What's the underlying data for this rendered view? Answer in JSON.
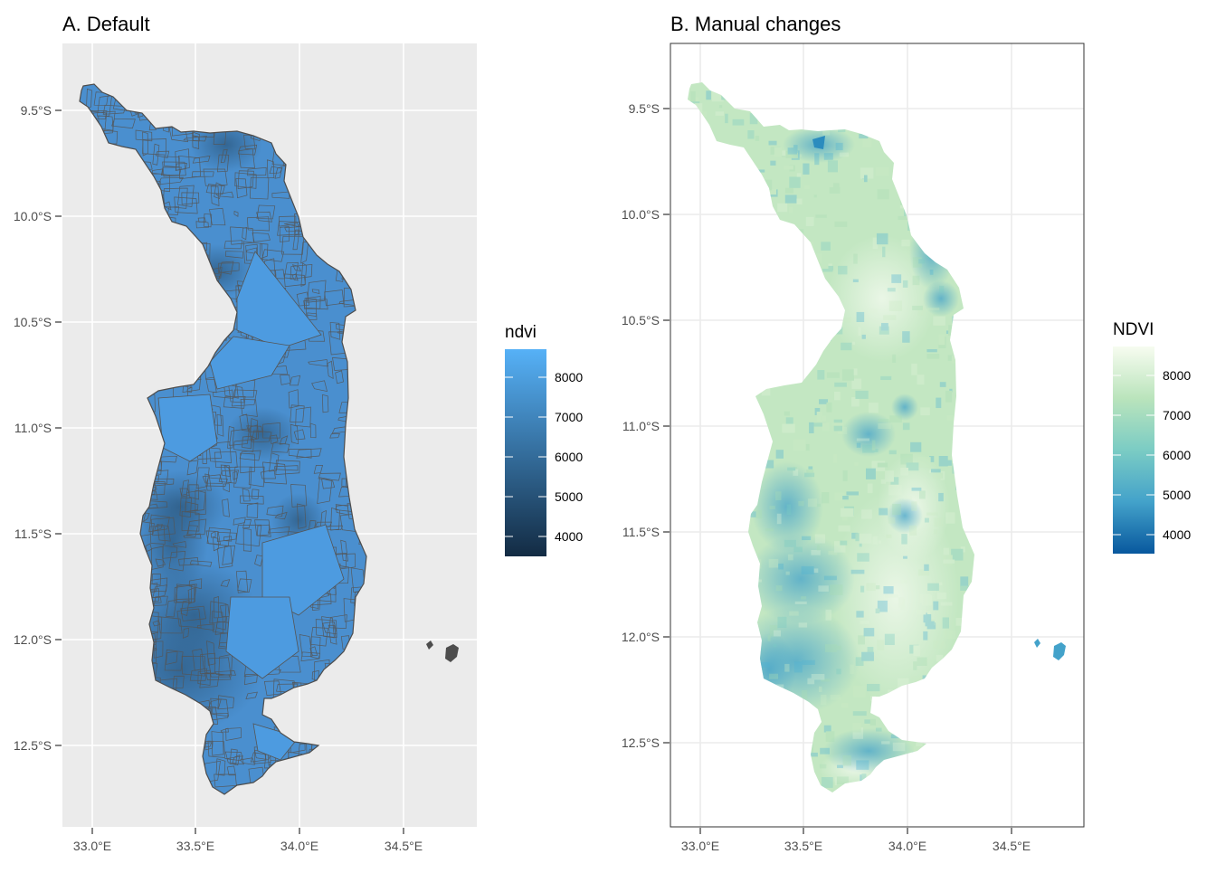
{
  "panel_a": {
    "title": "A. Default",
    "x_ticks": [
      "33.0°E",
      "33.5°E",
      "34.0°E",
      "34.5°E"
    ],
    "y_ticks": [
      "9.5°S",
      "10.0°S",
      "10.5°S",
      "11.0°S",
      "11.5°S",
      "12.0°S",
      "12.5°S"
    ],
    "legend_title": "ndvi",
    "legend_ticks": [
      "8000",
      "7000",
      "6000",
      "5000",
      "4000"
    ],
    "colors": {
      "panel_bg": "#ebebeb",
      "grid": "#ffffff",
      "fill": "#4a90d0",
      "border": "#4d4d4d",
      "scale_low": "#132b43",
      "scale_high": "#56b1f7"
    }
  },
  "panel_b": {
    "title": "B. Manual changes",
    "x_ticks": [
      "33.0°E",
      "33.5°E",
      "34.0°E",
      "34.5°E"
    ],
    "y_ticks": [
      "9.5°S",
      "10.0°S",
      "10.5°S",
      "11.0°S",
      "11.5°S",
      "12.0°S",
      "12.5°S"
    ],
    "legend_title": "NDVI",
    "legend_ticks": [
      "8000",
      "7000",
      "6000",
      "5000",
      "4000"
    ],
    "colors": {
      "panel_bg": "#ffffff",
      "grid": "#ebebeb",
      "panel_border": "#333333",
      "scale_low": "#08589e",
      "scale_mid": "#7bccc4",
      "scale_high": "#f7fcf0"
    }
  }
}
